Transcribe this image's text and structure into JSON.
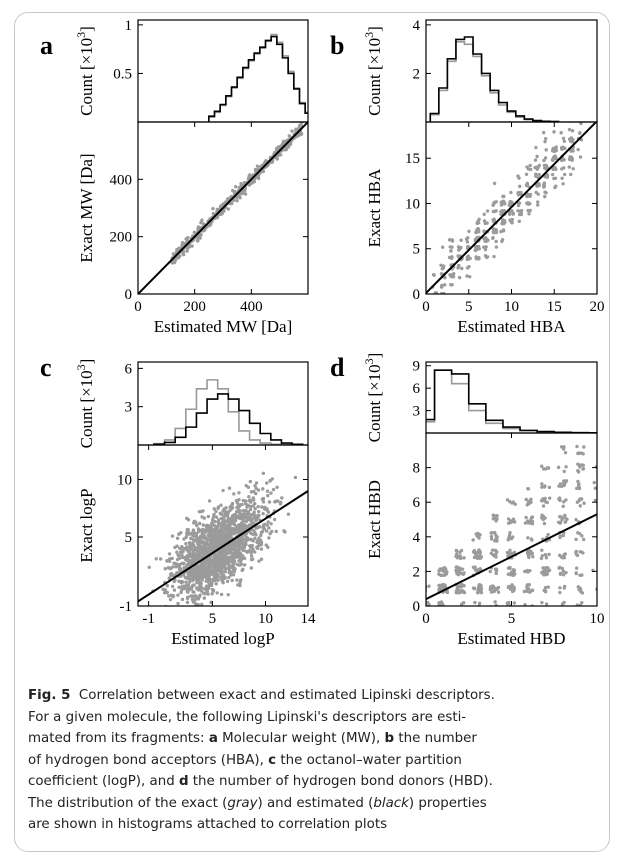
{
  "chart_data": [
    {
      "panel": "a",
      "type": "scatter",
      "xlabel": "Estimated MW [Da]",
      "ylabel": "Exact MW [Da]",
      "hist_ylabel": "Count [×10^3]",
      "xlim": [
        0,
        600
      ],
      "ylim": [
        0,
        600
      ],
      "xticks": [
        0,
        200,
        400
      ],
      "yticks": [
        0,
        200,
        400
      ],
      "hist_ylim": [
        0,
        1.05
      ],
      "hist_yticks": [
        0.5,
        1
      ],
      "fit_line": {
        "slope": 1.0,
        "intercept": 0
      },
      "histograms": [
        {
          "name": "exact",
          "color": "#999999",
          "bins": [
            260,
            280,
            300,
            320,
            340,
            360,
            380,
            400,
            420,
            440,
            460,
            480,
            500,
            520,
            540,
            560,
            580,
            600
          ],
          "counts": [
            0.05,
            0.1,
            0.17,
            0.26,
            0.35,
            0.45,
            0.55,
            0.63,
            0.7,
            0.76,
            0.83,
            0.9,
            0.82,
            0.68,
            0.52,
            0.35,
            0.2,
            0.1
          ]
        },
        {
          "name": "estimated",
          "color": "#000000",
          "bins": [
            260,
            280,
            300,
            320,
            340,
            360,
            380,
            400,
            420,
            440,
            460,
            480,
            500,
            520,
            540,
            560,
            580,
            600
          ],
          "counts": [
            0.06,
            0.11,
            0.18,
            0.27,
            0.36,
            0.46,
            0.56,
            0.64,
            0.71,
            0.77,
            0.84,
            0.88,
            0.8,
            0.66,
            0.5,
            0.34,
            0.19,
            0.09
          ]
        }
      ]
    },
    {
      "panel": "b",
      "type": "scatter",
      "xlabel": "Estimated HBA",
      "ylabel": "Exact HBA",
      "hist_ylabel": "Count [×10^3]",
      "xlim": [
        0,
        20
      ],
      "ylim": [
        0,
        19
      ],
      "xticks": [
        0,
        5,
        10,
        15,
        20
      ],
      "yticks": [
        0,
        5,
        10,
        15
      ],
      "hist_ylim": [
        0,
        4.2
      ],
      "hist_yticks": [
        2,
        4
      ],
      "fit_line": {
        "slope": 0.95,
        "intercept": 0.1
      },
      "histograms": [
        {
          "name": "exact",
          "color": "#999999",
          "bins": [
            1,
            2,
            3,
            4,
            5,
            6,
            7,
            8,
            9,
            10,
            11,
            12,
            13,
            14,
            15
          ],
          "counts": [
            0.3,
            1.3,
            2.5,
            3.3,
            3.2,
            2.7,
            1.9,
            1.2,
            0.7,
            0.4,
            0.2,
            0.1,
            0.05,
            0.03,
            0.02
          ]
        },
        {
          "name": "estimated",
          "color": "#000000",
          "bins": [
            1,
            2,
            3,
            4,
            5,
            6,
            7,
            8,
            9,
            10,
            11,
            12,
            13,
            14,
            15
          ],
          "counts": [
            0.35,
            1.4,
            2.6,
            3.4,
            3.5,
            2.8,
            2.0,
            1.3,
            0.8,
            0.45,
            0.25,
            0.12,
            0.06,
            0.03,
            0.02
          ]
        }
      ]
    },
    {
      "panel": "c",
      "type": "scatter",
      "xlabel": "Estimated logP",
      "ylabel": "Exact logP",
      "hist_ylabel": "Count [×10^3]",
      "xlim": [
        -2,
        14
      ],
      "ylim": [
        -1,
        13
      ],
      "xticks": [
        -1,
        5,
        10,
        14
      ],
      "yticks": [
        -1,
        5,
        10
      ],
      "hist_ylim": [
        0,
        6.5
      ],
      "hist_yticks": [
        3,
        6
      ],
      "fit_line": {
        "slope": 0.6,
        "intercept": 0.6
      },
      "histograms": [
        {
          "name": "exact",
          "color": "#999999",
          "bins": [
            0,
            1,
            2,
            3,
            4,
            5,
            6,
            7,
            8,
            9,
            10,
            11,
            12,
            13
          ],
          "counts": [
            0.1,
            0.4,
            1.3,
            2.8,
            4.4,
            5.1,
            4.4,
            2.6,
            1.1,
            0.4,
            0.15,
            0.05,
            0.02,
            0.01
          ]
        },
        {
          "name": "estimated",
          "color": "#000000",
          "bins": [
            0,
            1,
            2,
            3,
            4,
            5,
            6,
            7,
            8,
            9,
            10,
            11,
            12,
            13
          ],
          "counts": [
            0.05,
            0.2,
            0.6,
            1.4,
            2.5,
            3.6,
            4.0,
            3.6,
            2.7,
            1.7,
            0.9,
            0.4,
            0.15,
            0.05
          ]
        }
      ]
    },
    {
      "panel": "d",
      "type": "scatter",
      "xlabel": "Estimated HBD",
      "ylabel": "Exact HBD",
      "hist_ylabel": "Count [×10^3]",
      "xlim": [
        0,
        10
      ],
      "ylim": [
        0,
        10
      ],
      "xticks": [
        0,
        5,
        10
      ],
      "yticks": [
        0,
        2,
        4,
        6,
        8
      ],
      "hist_ylim": [
        0,
        9.5
      ],
      "hist_yticks": [
        3,
        6,
        9
      ],
      "fit_line": {
        "slope": 0.49,
        "intercept": 0.4
      },
      "histograms": [
        {
          "name": "exact",
          "color": "#999999",
          "bins": [
            0,
            1,
            2,
            3,
            4,
            5,
            6,
            7,
            8,
            9,
            10
          ],
          "counts": [
            1.5,
            8.4,
            6.6,
            3.0,
            1.3,
            0.6,
            0.3,
            0.15,
            0.08,
            0.04,
            0.02
          ]
        },
        {
          "name": "estimated",
          "color": "#000000",
          "bins": [
            0,
            1,
            2,
            3,
            4,
            5,
            6,
            7,
            8,
            9,
            10
          ],
          "counts": [
            1.8,
            8.4,
            7.9,
            3.9,
            1.7,
            0.8,
            0.35,
            0.2,
            0.1,
            0.05,
            0.02
          ]
        }
      ]
    }
  ],
  "caption": {
    "label": "Fig. 5",
    "title": "Correlation between exact and estimated Lipinski descriptors.",
    "line1": "For a given molecule, the following Lipinski's descriptors are esti-",
    "line2_pre": "mated from its fragments: ",
    "line2_a": "a",
    "line2_post": " Molecular weight (MW), ",
    "line2_b": "b",
    "line2_end": " the number",
    "line3_pre": "of hydrogen bond acceptors (HBA), ",
    "line3_c": "c",
    "line3_post": " the octanol–water partition",
    "line4_pre": "coefficient (logP), and ",
    "line4_d": "d",
    "line4_post": " the number of hydrogen bond donors (HBD).",
    "line5_pre": "The distribution of the exact (",
    "line5_gray": "gray",
    "line5_mid": ") and estimated (",
    "line5_black": "black",
    "line5_post": ") properties",
    "line6": "are shown in histograms attached to correlation plots"
  }
}
